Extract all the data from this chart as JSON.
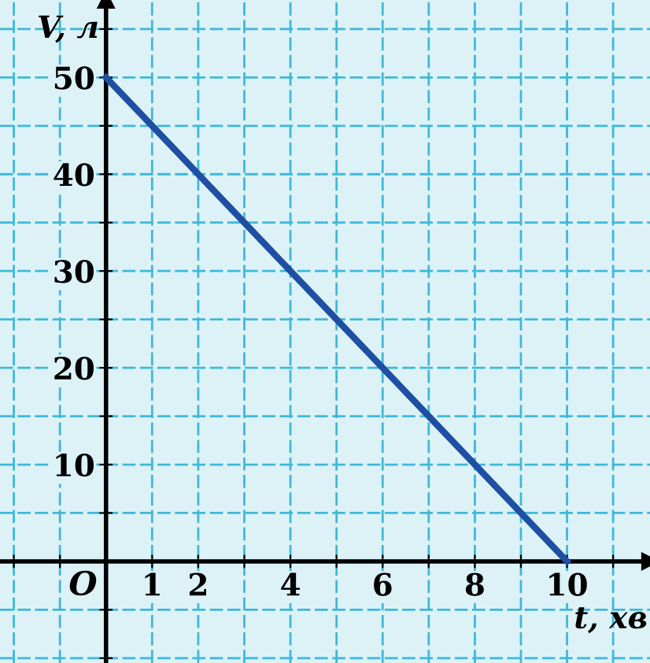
{
  "chart_data": {
    "type": "line",
    "xlabel": "t, хв",
    "ylabel": "V, л",
    "x": [
      0,
      10
    ],
    "values": [
      50,
      0
    ],
    "color": "#1f4fa3",
    "xlim": [
      -2.3,
      11.8
    ],
    "ylim": [
      -10.5,
      58
    ],
    "xticks": [
      {
        "value": -2,
        "label": null
      },
      {
        "value": -1,
        "label": null
      },
      1,
      2,
      {
        "value": 3,
        "label": null
      },
      4,
      {
        "value": 5,
        "label": null
      },
      6,
      {
        "value": 7,
        "label": null
      },
      8,
      {
        "value": 9,
        "label": null
      },
      10,
      {
        "value": 11,
        "label": null
      }
    ],
    "yticks": [
      {
        "value": -10,
        "label": null
      },
      {
        "value": -5,
        "label": null
      },
      {
        "value": 5,
        "label": null
      },
      10,
      {
        "value": 15,
        "label": null
      },
      20,
      {
        "value": 25,
        "label": null
      },
      30,
      {
        "value": 35,
        "label": null
      },
      40,
      {
        "value": 45,
        "label": null
      },
      50,
      {
        "value": 55,
        "label": null
      }
    ],
    "grid": true,
    "marker": "none",
    "line_style": "solid",
    "annotations": [
      "O"
    ]
  }
}
